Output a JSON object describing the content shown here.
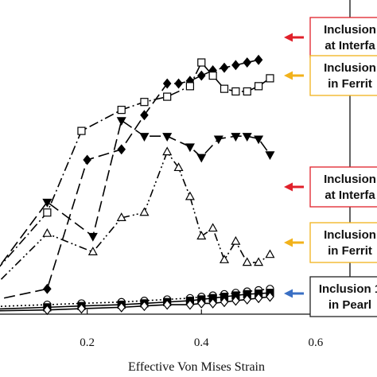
{
  "chart_data": {
    "type": "line",
    "xlabel": "Effective Von Mises Strain",
    "ylabel": "",
    "title": "",
    "xlim": [
      0.0,
      0.66
    ],
    "ylim": [
      0,
      1
    ],
    "x_ticks": [
      "0.2",
      "0.4",
      "0.6"
    ],
    "grid": false,
    "series": [
      {
        "name": "",
        "marker": "filled-diamond",
        "line": "long-dash",
        "x": [
          0.0,
          0.13,
          0.2,
          0.26,
          0.3,
          0.34,
          0.36,
          0.38,
          0.4,
          0.42,
          0.44,
          0.46,
          0.48,
          0.5
        ],
        "y": [
          0.03,
          0.09,
          0.58,
          0.62,
          0.75,
          0.87,
          0.87,
          0.88,
          0.9,
          0.92,
          0.93,
          0.94,
          0.95,
          0.96
        ]
      },
      {
        "name": "",
        "marker": "open-square",
        "line": "dash-dot",
        "x": [
          0.0,
          0.13,
          0.19,
          0.26,
          0.3,
          0.34,
          0.38,
          0.4,
          0.42,
          0.44,
          0.46,
          0.48,
          0.5,
          0.52
        ],
        "y": [
          0.06,
          0.38,
          0.69,
          0.77,
          0.8,
          0.82,
          0.86,
          0.95,
          0.9,
          0.85,
          0.84,
          0.84,
          0.86,
          0.89
        ]
      },
      {
        "name": "",
        "marker": "filled-triangle-down",
        "line": "long-dash",
        "x": [
          0.0,
          0.13,
          0.21,
          0.26,
          0.3,
          0.34,
          0.38,
          0.4,
          0.43,
          0.46,
          0.48,
          0.5,
          0.52
        ],
        "y": [
          0.04,
          0.42,
          0.29,
          0.73,
          0.67,
          0.67,
          0.63,
          0.59,
          0.66,
          0.67,
          0.67,
          0.66,
          0.6
        ]
      },
      {
        "name": "",
        "marker": "open-triangle-up",
        "line": "dash-dot-dot",
        "x": [
          0.0,
          0.13,
          0.21,
          0.26,
          0.3,
          0.34,
          0.36,
          0.38,
          0.4,
          0.42,
          0.44,
          0.46,
          0.48,
          0.5,
          0.52
        ],
        "y": [
          0.02,
          0.3,
          0.23,
          0.36,
          0.38,
          0.61,
          0.55,
          0.44,
          0.29,
          0.32,
          0.2,
          0.27,
          0.19,
          0.19,
          0.22
        ]
      },
      {
        "name": "",
        "marker": "open-circle",
        "line": "dotted",
        "x": [
          0.0,
          0.13,
          0.19,
          0.26,
          0.3,
          0.34,
          0.38,
          0.4,
          0.42,
          0.44,
          0.46,
          0.48,
          0.5,
          0.52
        ],
        "y": [
          0.02,
          0.03,
          0.035,
          0.04,
          0.045,
          0.05,
          0.055,
          0.06,
          0.065,
          0.07,
          0.075,
          0.08,
          0.085,
          0.09
        ]
      },
      {
        "name": "",
        "marker": "filled-square",
        "line": "solid",
        "x": [
          0.0,
          0.13,
          0.19,
          0.26,
          0.3,
          0.34,
          0.38,
          0.4,
          0.42,
          0.44,
          0.46,
          0.48,
          0.5,
          0.52
        ],
        "y": [
          0.01,
          0.02,
          0.025,
          0.03,
          0.035,
          0.04,
          0.045,
          0.05,
          0.055,
          0.06,
          0.065,
          0.07,
          0.072,
          0.075
        ]
      },
      {
        "name": "",
        "marker": "open-diamond",
        "line": "solid",
        "x": [
          0.0,
          0.13,
          0.19,
          0.26,
          0.3,
          0.34,
          0.38,
          0.4,
          0.42,
          0.44,
          0.46,
          0.48,
          0.5,
          0.52
        ],
        "y": [
          0.005,
          0.01,
          0.015,
          0.02,
          0.025,
          0.03,
          0.03,
          0.035,
          0.035,
          0.04,
          0.045,
          0.05,
          0.055,
          0.06
        ]
      }
    ],
    "annotations": [
      {
        "lines": [
          "Inclusion",
          "at Interfa"
        ],
        "box_color": "#e0202a",
        "arrow_color": "#e0202a",
        "target_series": 0
      },
      {
        "lines": [
          "Inclusion",
          "in Ferrit"
        ],
        "box_color": "#f2b21b",
        "arrow_color": "#f2b21b",
        "target_series": 1
      },
      {
        "lines": [
          "Inclusion",
          "at Interfa"
        ],
        "box_color": "#e0202a",
        "arrow_color": "#e0202a",
        "target_series": 2
      },
      {
        "lines": [
          "Inclusion",
          "in Ferrit"
        ],
        "box_color": "#f2b21b",
        "arrow_color": "#f2b21b",
        "target_series": 3
      },
      {
        "lines": [
          "Inclusion 1",
          "in Pearl"
        ],
        "box_color": "#222222",
        "arrow_color": "#3a6fc4",
        "target_series": 4
      }
    ]
  }
}
